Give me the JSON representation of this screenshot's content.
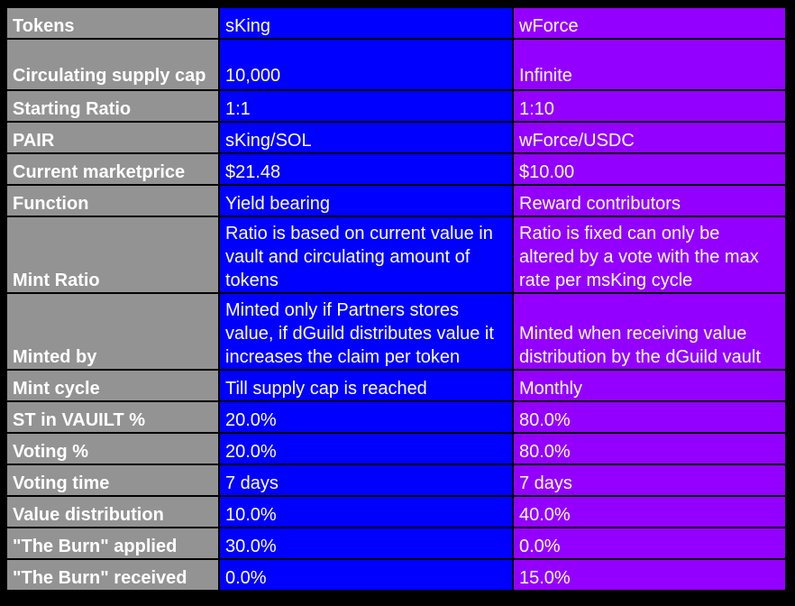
{
  "colors": {
    "background": "#000000",
    "label_column": "#939393",
    "sking_column": "#0000ff",
    "wforce_column": "#9400ff",
    "text": "#ffffff"
  },
  "rows": [
    {
      "label": "Tokens",
      "sking": "sKing",
      "wforce": "wForce"
    },
    {
      "label": "Circulating supply cap",
      "sking": "10,000",
      "wforce": "Infinite"
    },
    {
      "label": "Starting Ratio",
      "sking": "1:1",
      "wforce": "1:10"
    },
    {
      "label": "PAIR",
      "sking": "sKing/SOL",
      "wforce": "wForce/USDC"
    },
    {
      "label": "Current marketprice",
      "sking": "$21.48",
      "wforce": "$10.00"
    },
    {
      "label": "Function",
      "sking": "Yield bearing",
      "wforce": "Reward contributors"
    },
    {
      "label": "Mint Ratio",
      "sking": "Ratio is based on current value in vault and circulating amount of tokens",
      "wforce": "Ratio is fixed can only be altered by a vote with the max rate per msKing cycle"
    },
    {
      "label": "Minted by",
      "sking": "Minted only if Partners stores value, if dGuild distributes value it increases the claim per token",
      "wforce": "Minted when receiving value distribution by the dGuild vault"
    },
    {
      "label": "Mint cycle",
      "sking": "Till supply cap is reached",
      "wforce": "Monthly"
    },
    {
      "label": "ST in VAUILT %",
      "sking": "20.0%",
      "wforce": "80.0%"
    },
    {
      "label": "Voting %",
      "sking": "20.0%",
      "wforce": "80.0%"
    },
    {
      "label": "Voting time",
      "sking": "7 days",
      "wforce": "7 days"
    },
    {
      "label": "Value distribution",
      "sking": "10.0%",
      "wforce": "40.0%"
    },
    {
      "label": "\"The Burn\" applied",
      "sking": "30.0%",
      "wforce": "0.0%"
    },
    {
      "label": "\"The Burn\" received",
      "sking": "0.0%",
      "wforce": "15.0%"
    }
  ]
}
